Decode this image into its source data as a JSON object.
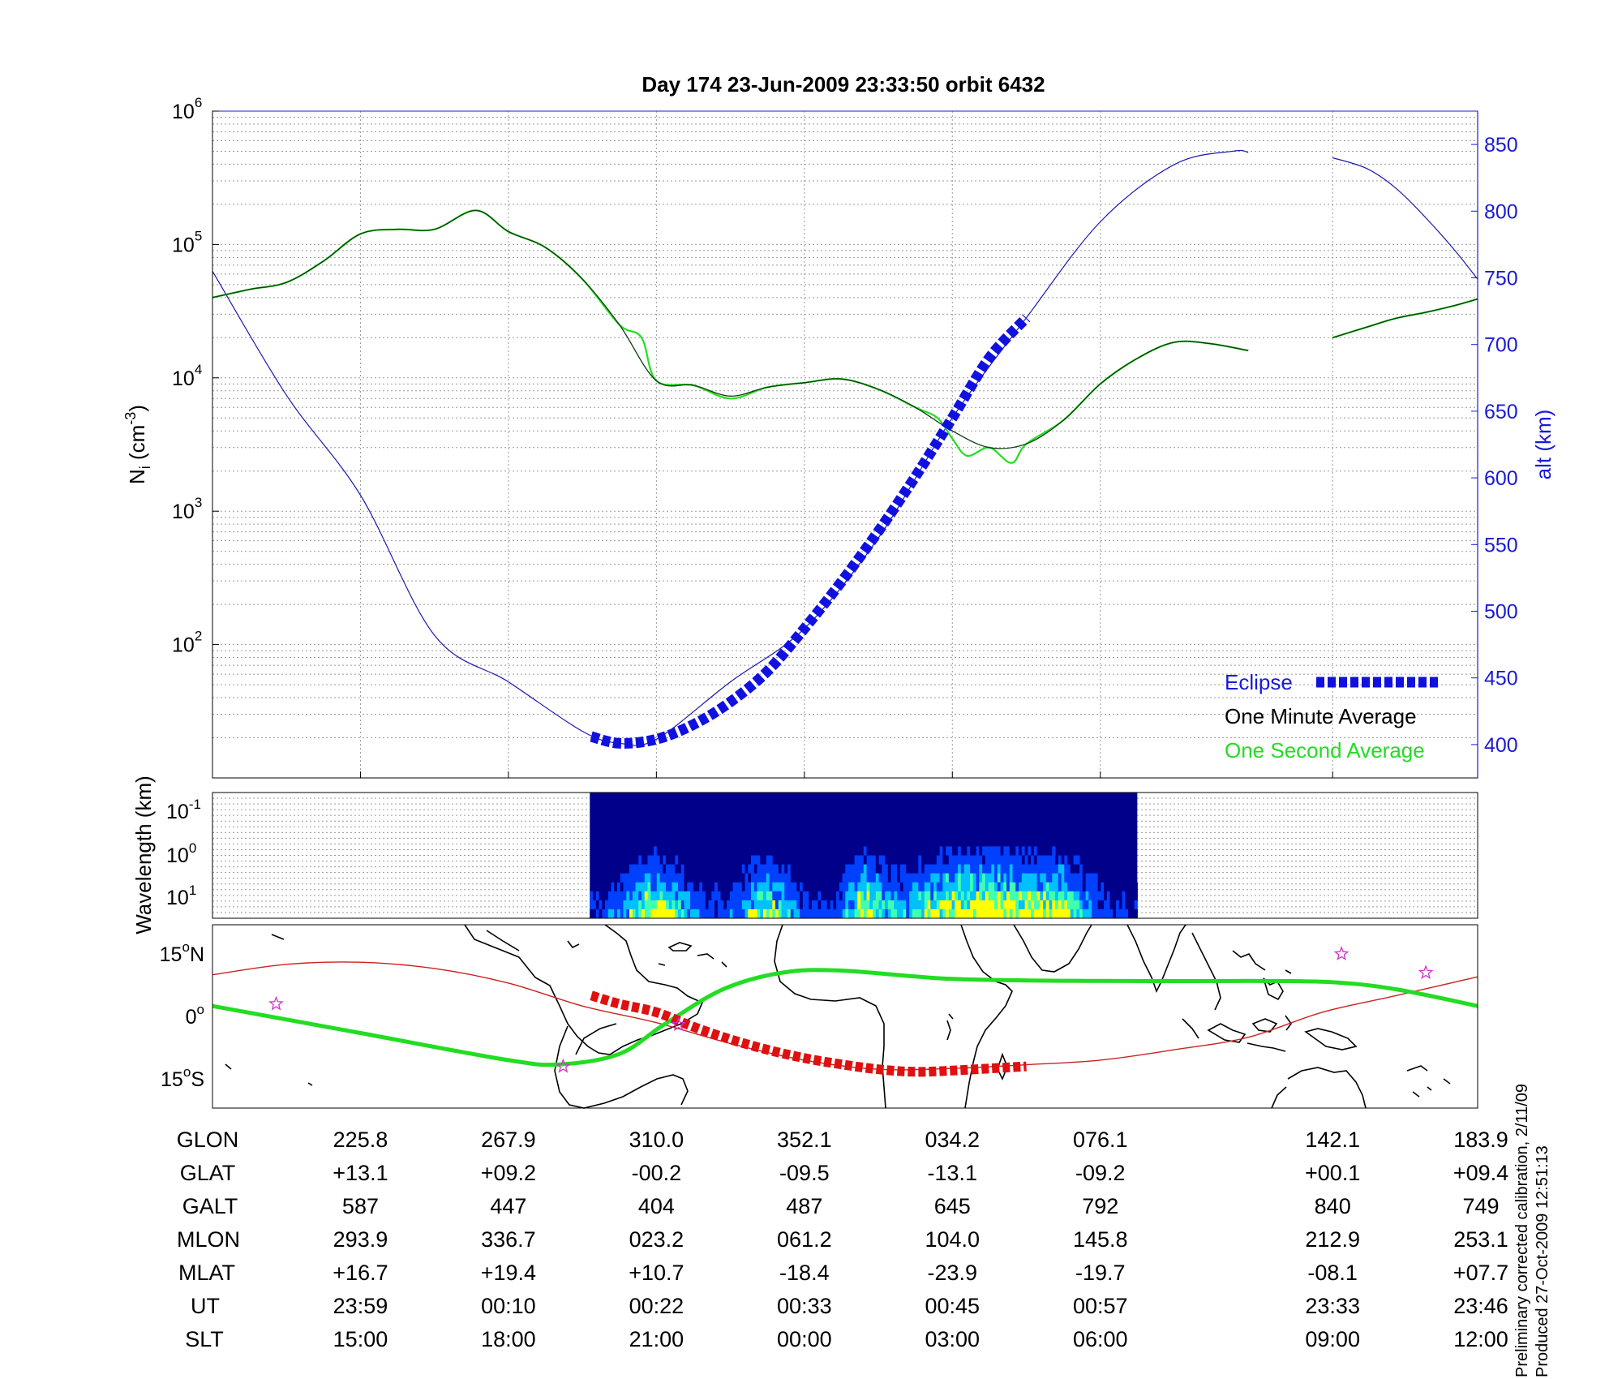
{
  "title": "Day 174  23-Jun-2009 23:33:50   orbit 6432",
  "chart_data": [
    {
      "type": "line",
      "panel": "ion density and altitude",
      "ylabel_left": "N_i (cm^-3)",
      "ylabel_left_parts": {
        "base": "N",
        "sub": "i",
        "open": " (cm",
        "sup": "-3",
        "close": ")"
      },
      "yscale_left": "log",
      "ylim_left": [
        10,
        1000000
      ],
      "yticks_left": [
        {
          "base": "10",
          "exp": "2",
          "value": 100
        },
        {
          "base": "10",
          "exp": "3",
          "value": 1000
        },
        {
          "base": "10",
          "exp": "4",
          "value": 10000
        },
        {
          "base": "10",
          "exp": "5",
          "value": 100000
        },
        {
          "base": "10",
          "exp": "6",
          "value": 1000000
        }
      ],
      "ylabel_right": "alt (km)",
      "ylim_right": [
        375,
        875
      ],
      "yticks_right": [
        400,
        450,
        500,
        550,
        600,
        650,
        700,
        750,
        800,
        850
      ],
      "xlim": [
        0,
        8.55
      ],
      "xtick_positions": [
        1,
        2,
        3,
        4,
        5,
        6,
        7.57,
        8.55
      ],
      "grid": true,
      "legend_position": "bottom-right",
      "legend": [
        {
          "label": "Eclipse",
          "color": "#1010e0"
        },
        {
          "label": "One Minute Average",
          "color": "#000000"
        },
        {
          "label": "One Second Average",
          "color": "#22dd22"
        }
      ],
      "series": [
        {
          "name": "One Minute Average",
          "color": "#0a3d0a",
          "segments": [
            {
              "x": [
                0,
                0.25,
                0.5,
                0.75,
                1.0,
                1.25,
                1.5,
                1.78,
                2.0,
                2.25,
                2.5,
                2.75,
                3.0,
                3.25,
                3.5,
                3.75,
                4.0,
                4.25,
                4.5,
                4.75,
                5.0,
                5.25,
                5.5,
                5.75,
                6.0,
                6.25,
                6.5,
                6.75,
                7.0
              ],
              "y": [
                40000,
                46000,
                52000,
                75000,
                120000,
                130000,
                130000,
                180000,
                125000,
                95000,
                55000,
                25000,
                9500,
                8800,
                7300,
                8500,
                9200,
                9800,
                8200,
                6000,
                4000,
                3000,
                3200,
                4800,
                9000,
                14000,
                18500,
                18000,
                16000
              ]
            },
            {
              "x": [
                7.57,
                7.8,
                8.0,
                8.2,
                8.4,
                8.55
              ],
              "y": [
                20000,
                24000,
                28000,
                31000,
                35000,
                39000
              ]
            }
          ]
        },
        {
          "name": "One Second Average",
          "color": "#22dd22",
          "segments": [
            {
              "x": [
                0,
                0.25,
                0.5,
                0.75,
                1.0,
                1.25,
                1.5,
                1.78,
                2.0,
                2.25,
                2.5,
                2.75,
                2.9,
                3.0,
                3.25,
                3.5,
                3.75,
                4.0,
                4.25,
                4.5,
                4.75,
                4.9,
                5.0,
                5.1,
                5.25,
                5.4,
                5.5,
                5.75,
                6.0,
                6.25,
                6.5,
                6.75,
                7.0
              ],
              "y": [
                40000,
                46000,
                52000,
                75000,
                120000,
                130000,
                130000,
                180000,
                125000,
                95000,
                55000,
                25000,
                20000,
                9500,
                8800,
                7000,
                8500,
                9200,
                9800,
                8200,
                6000,
                5000,
                3500,
                2600,
                3000,
                2300,
                3200,
                4800,
                9000,
                14000,
                18500,
                18000,
                16000
              ]
            },
            {
              "x": [
                7.57,
                7.8,
                8.0,
                8.2,
                8.4,
                8.55
              ],
              "y": [
                20000,
                24000,
                28000,
                31000,
                35000,
                39000
              ]
            }
          ]
        },
        {
          "name": "alt (km)",
          "color": "#1a1ab0",
          "axis": "right",
          "segments": [
            {
              "x": [
                0,
                0.5,
                1.0,
                1.5,
                2.0,
                2.5,
                2.75,
                3.0,
                3.5,
                4.0,
                4.5,
                5.0,
                5.5,
                6.0,
                6.5,
                6.9,
                7.0
              ],
              "y": [
                755,
                662,
                587,
                482,
                447,
                410,
                401,
                404,
                447,
                487,
                555,
                645,
                720,
                792,
                835,
                845,
                844
              ]
            },
            {
              "x": [
                7.57,
                7.8,
                8.0,
                8.2,
                8.4,
                8.55
              ],
              "y": [
                840,
                832,
                817,
                795,
                770,
                749
              ]
            }
          ]
        },
        {
          "name": "Eclipse",
          "color": "#1010e0",
          "axis": "right",
          "x": [
            2.56,
            2.75,
            3.0,
            3.25,
            3.5,
            3.75,
            4.0,
            4.25,
            4.5,
            4.75,
            5.0,
            5.25,
            5.5
          ],
          "y": [
            406,
            401,
            404,
            415,
            432,
            455,
            487,
            522,
            560,
            601,
            645,
            690,
            720
          ]
        }
      ]
    },
    {
      "type": "heatmap",
      "panel": "spectrogram",
      "ylabel": "Wavelength (km)",
      "yscale": "log",
      "yticks": [
        {
          "base": "10",
          "exp": "-1"
        },
        {
          "base": "10",
          "exp": "0"
        },
        {
          "base": "10",
          "exp": "1"
        }
      ],
      "data_x_range": [
        2.55,
        6.25
      ],
      "colormap": [
        "#00008b",
        "#0040ff",
        "#00c0ff",
        "#40ffb0",
        "#ffff00"
      ]
    },
    {
      "type": "line",
      "panel": "orbit track map",
      "yticks": [
        {
          "deg": "15",
          "hemi": "N"
        },
        {
          "deg": "0",
          "hemi": ""
        },
        {
          "deg": "15",
          "hemi": "S"
        }
      ],
      "ylim": [
        -22,
        22
      ],
      "xlim": [
        0,
        8.55
      ],
      "series": [
        {
          "name": "geographic track",
          "color": "#22dd22",
          "x": [
            0,
            1.0,
            2.0,
            2.35,
            2.75,
            3.05,
            3.45,
            3.85,
            4.25,
            5.0,
            6.0,
            7.0,
            7.57,
            8.0,
            8.55
          ],
          "y": [
            2.5,
            -4,
            -10.5,
            -11.5,
            -9,
            -2,
            6.5,
            10.5,
            11,
            9,
            8.5,
            8.5,
            8.2,
            6.5,
            2.5
          ]
        },
        {
          "name": "magnetic equator",
          "color": "#cc2222",
          "x": [
            0,
            0.5,
            1.0,
            1.5,
            2.0,
            2.5,
            3.0,
            3.5,
            4.0,
            4.5,
            5.0,
            5.5,
            6.0,
            6.5,
            7.0,
            7.5,
            8.0,
            8.55
          ],
          "y": [
            10,
            12.5,
            13,
            11.5,
            8,
            2.5,
            -1.5,
            -6.5,
            -10.5,
            -12.7,
            -12.5,
            -11.6,
            -10.5,
            -8,
            -5,
            1,
            5,
            9.5
          ]
        },
        {
          "name": "Eclipse",
          "color": "#e01010",
          "x": [
            2.56,
            2.75,
            3.0,
            3.25,
            3.5,
            3.75,
            4.0,
            4.25,
            4.5,
            4.75,
            5.0,
            5.25,
            5.5
          ],
          "y": [
            5,
            3,
            1,
            -2.5,
            -5.5,
            -8,
            -10,
            -11.5,
            -12.7,
            -13.3,
            -13,
            -12.5,
            -12
          ]
        },
        {
          "name": "stars",
          "color": "#cc33cc",
          "x": [
            0.43,
            2.37,
            3.15,
            7.63,
            8.2
          ],
          "y": [
            3,
            -12,
            -2,
            15,
            10.5
          ]
        }
      ]
    }
  ],
  "table": {
    "row_labels": [
      "GLON",
      "GLAT",
      "GALT",
      "MLON",
      "MLAT",
      "UT",
      "SLT"
    ],
    "columns": [
      [
        "225.8",
        "+13.1",
        "587",
        "293.9",
        "+16.7",
        "23:59",
        "15:00"
      ],
      [
        "267.9",
        "+09.2",
        "447",
        "336.7",
        "+19.4",
        "00:10",
        "18:00"
      ],
      [
        "310.0",
        "-00.2",
        "404",
        "023.2",
        "+10.7",
        "00:22",
        "21:00"
      ],
      [
        "352.1",
        "-09.5",
        "487",
        "061.2",
        "-18.4",
        "00:33",
        "00:00"
      ],
      [
        "034.2",
        "-13.1",
        "645",
        "104.0",
        "-23.9",
        "00:45",
        "03:00"
      ],
      [
        "076.1",
        "-09.2",
        "792",
        "145.8",
        "-19.7",
        "00:57",
        "06:00"
      ],
      [
        "142.1",
        "+00.1",
        "840",
        "212.9",
        "-08.1",
        "23:33",
        "09:00"
      ],
      [
        "183.9",
        "+09.4",
        "749",
        "253.1",
        "+07.7",
        "23:46",
        "12:00"
      ]
    ]
  },
  "notes": {
    "calibration": "Preliminary corrected calibration, 2/11/09",
    "produced": "Produced 27-Oct-2009 12:51:13"
  }
}
